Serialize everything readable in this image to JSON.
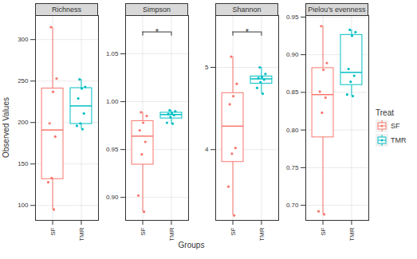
{
  "chart_data": {
    "type": "boxplot",
    "x_label": "Groups",
    "y_label": "Observed Values",
    "legend_title": "Treat",
    "legend": "right",
    "grid": true,
    "series": [
      {
        "name": "SF",
        "color": "#F8766D"
      },
      {
        "name": "TMR",
        "color": "#00BFC4"
      }
    ],
    "panels": [
      {
        "title": "Richness",
        "ylim": [
          82,
          329
        ],
        "yticks": [
          100,
          150,
          200,
          250,
          300
        ],
        "values": {
          "SF": [
            315,
            253,
            237,
            199,
            183,
            133,
            128,
            95
          ],
          "TMR": [
            252,
            243,
            241,
            229,
            211,
            199,
            196,
            192
          ]
        }
      },
      {
        "title": "Simpson",
        "ylim": [
          0.876,
          1.09
        ],
        "yticks": [
          {
            "value": 0.9,
            "label": "0.90"
          },
          {
            "value": 0.95,
            "label": "0.95"
          },
          {
            "value": 1,
            "label": "1.00"
          },
          {
            "value": 1.05,
            "label": "1.05"
          }
        ],
        "values": {
          "SF": [
            0.989,
            0.985,
            0.978,
            0.97,
            0.958,
            0.945,
            0.902,
            0.885
          ],
          "TMR": [
            0.991,
            0.99,
            0.988,
            0.987,
            0.986,
            0.984,
            0.978,
            0.977
          ]
        },
        "significance": {
          "groups": [
            "SF",
            "TMR"
          ],
          "label": "*"
        }
      },
      {
        "title": "Shannon",
        "ylim": [
          3.14,
          5.63
        ],
        "yticks": [
          4,
          5
        ],
        "values": {
          "SF": [
            5.13,
            4.8,
            4.65,
            4.55,
            4.02,
            3.95,
            3.55,
            3.2
          ],
          "TMR": [
            5.0,
            4.92,
            4.88,
            4.87,
            4.85,
            4.82,
            4.75,
            4.68
          ]
        },
        "significance": {
          "groups": [
            "SF",
            "TMR"
          ],
          "label": "*"
        }
      },
      {
        "title": "Pielou's evenness",
        "ylim": [
          0.68,
          0.952
        ],
        "yticks": [
          {
            "value": 0.7,
            "label": "0.70"
          },
          {
            "value": 0.75,
            "label": "0.75"
          },
          {
            "value": 0.8,
            "label": "0.80"
          },
          {
            "value": 0.85,
            "label": "0.85"
          },
          {
            "value": 0.9,
            "label": "0.90"
          },
          {
            "value": 0.95,
            "label": "0.95"
          }
        ],
        "values": {
          "SF": [
            0.938,
            0.889,
            0.88,
            0.851,
            0.843,
            0.823,
            0.692,
            0.688
          ],
          "TMR": [
            0.933,
            0.93,
            0.925,
            0.881,
            0.872,
            0.864,
            0.847,
            0.845
          ]
        }
      }
    ]
  }
}
